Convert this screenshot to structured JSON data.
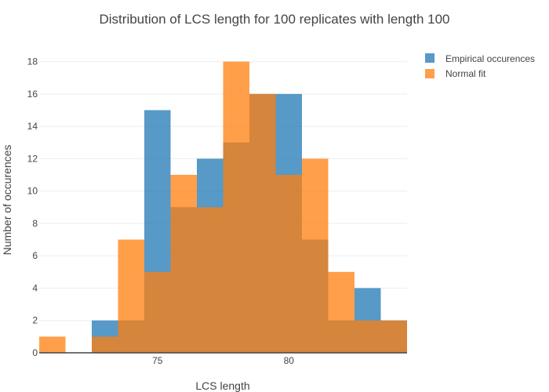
{
  "chart_data": {
    "type": "bar",
    "title": "Distribution of LCS length for 100 replicates with length 100",
    "xlabel": "LCS length",
    "ylabel": "Number of occurences",
    "x_bin_start": 70.5,
    "bin_width": 1,
    "xlim": [
      70.5,
      84.5
    ],
    "ylim": [
      0,
      18.9
    ],
    "x_ticks": [
      75,
      80
    ],
    "y_ticks": [
      0,
      2,
      4,
      6,
      8,
      10,
      12,
      14,
      16,
      18
    ],
    "grid": true,
    "legend_position": "top-right",
    "series": [
      {
        "name": "Empirical occurences",
        "color": "#1f77b4",
        "values": [
          0,
          0,
          2,
          2,
          15,
          9,
          12,
          13,
          16,
          16,
          7,
          2,
          4,
          2
        ]
      },
      {
        "name": "Normal fit",
        "color": "#ff7f0e",
        "values": [
          1,
          0,
          1,
          7,
          5,
          11,
          9,
          18,
          16,
          11,
          12,
          5,
          2,
          2
        ]
      }
    ]
  }
}
